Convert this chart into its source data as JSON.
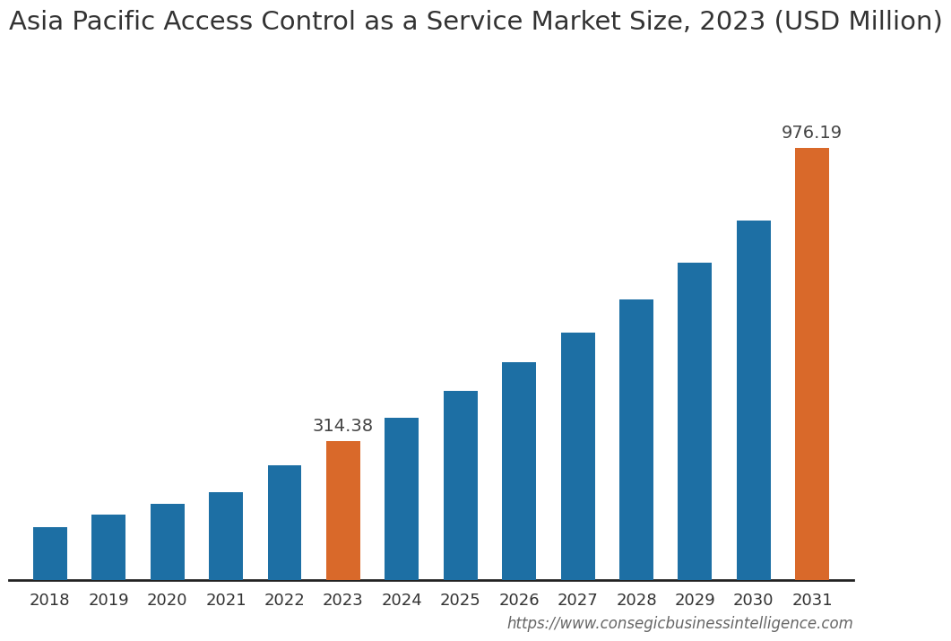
{
  "title": "Asia Pacific Access Control as a Service Market Size, 2023 (USD Million)",
  "years": [
    2018,
    2019,
    2020,
    2021,
    2022,
    2023,
    2024,
    2025,
    2026,
    2027,
    2028,
    2029,
    2030,
    2031
  ],
  "values": [
    121,
    148,
    172,
    200,
    260,
    314.38,
    368,
    428,
    492,
    560,
    635,
    718,
    812,
    976.19
  ],
  "bar_colors": [
    "#1d6fa4",
    "#1d6fa4",
    "#1d6fa4",
    "#1d6fa4",
    "#1d6fa4",
    "#d9692a",
    "#1d6fa4",
    "#1d6fa4",
    "#1d6fa4",
    "#1d6fa4",
    "#1d6fa4",
    "#1d6fa4",
    "#1d6fa4",
    "#d9692a"
  ],
  "highlight_years": [
    2023,
    2031
  ],
  "label_2023": "314.38",
  "label_2031": "976.19",
  "website": "https://www.consegicbusinessintelligence.com",
  "background_color": "#ffffff",
  "title_fontsize": 21,
  "tick_fontsize": 13,
  "label_fontsize": 14,
  "website_fontsize": 12,
  "bar_width": 0.58,
  "ylim_max": 1150
}
